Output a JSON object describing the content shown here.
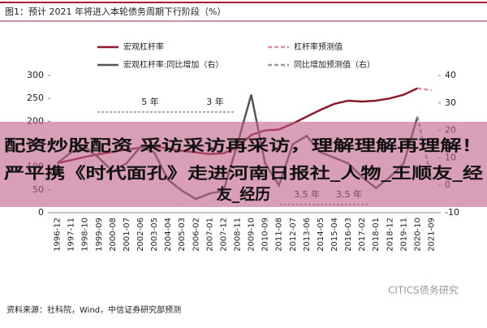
{
  "chart_data": {
    "type": "line",
    "title": "图1：预计 2021 年将进入本轮债务周期下行阶段（%）",
    "categories": [
      "1996-12",
      "1997-11",
      "1998-10",
      "1999-09",
      "2000-08",
      "2001-07",
      "2002-06",
      "2003-05",
      "2004-04",
      "2005-03",
      "2006-02",
      "2007-01",
      "2007-12",
      "2008-11",
      "2009-10",
      "2010-09",
      "2011-08",
      "2012-07",
      "2013-06",
      "2014-05",
      "2015-04",
      "2016-03",
      "2017-02",
      "2018-01",
      "2018-12",
      "2019-11",
      "2020-10",
      "2021-09"
    ],
    "series": [
      {
        "name": "宏观杠杆率",
        "color": "#8b1a2b",
        "dashed": false,
        "values": [
          108,
          115,
          122,
          128,
          133,
          138,
          142,
          145,
          140,
          135,
          132,
          128,
          130,
          143,
          170,
          180,
          182,
          195,
          210,
          225,
          238,
          245,
          243,
          245,
          250,
          258,
          272,
          null
        ]
      },
      {
        "name": "杠杆率预测值",
        "color": "#e58a9a",
        "dashed": true,
        "values": [
          null,
          null,
          null,
          null,
          null,
          null,
          null,
          null,
          null,
          null,
          null,
          null,
          null,
          null,
          null,
          null,
          null,
          null,
          null,
          null,
          null,
          null,
          null,
          null,
          null,
          null,
          272,
          268
        ]
      },
      {
        "name": "宏观杠杆率:同比增加（右）",
        "color": "#555555",
        "dashed": false,
        "axis": "y2",
        "values": [
          8,
          12,
          14,
          10,
          5,
          8,
          14,
          12,
          2,
          -2,
          -5,
          -3,
          -2,
          15,
          33,
          8,
          0,
          15,
          18,
          12,
          10,
          8,
          3,
          -1,
          3,
          8,
          25,
          null
        ]
      },
      {
        "name": "同比增加预测值（右）",
        "color": "#9a9a9a",
        "dashed": true,
        "axis": "y2",
        "values": [
          null,
          null,
          null,
          null,
          null,
          null,
          null,
          null,
          null,
          null,
          null,
          null,
          null,
          null,
          null,
          null,
          null,
          null,
          null,
          null,
          null,
          null,
          null,
          null,
          null,
          null,
          25,
          2
        ]
      }
    ],
    "ylim": [
      0,
      300
    ],
    "yticks": [
      0,
      50,
      100,
      150,
      200,
      250,
      300
    ],
    "y2lim": [
      -10,
      40
    ],
    "y2ticks": [
      -10,
      0,
      10,
      20,
      30,
      40
    ],
    "legend": "top",
    "annotations": [
      "5 年",
      "3 年",
      "3.5 年",
      "3.5 年"
    ],
    "source": "资料来源：社科院，Wind，中信证券研究部预测",
    "watermark": "CITICS债务研究",
    "overlay": [
      "配资炒股配资 采访采访再采访，理解理解再理解！",
      "严平携《时代面孔》走进河南日报社_人物_王顺友_经",
      "友_经历"
    ]
  }
}
